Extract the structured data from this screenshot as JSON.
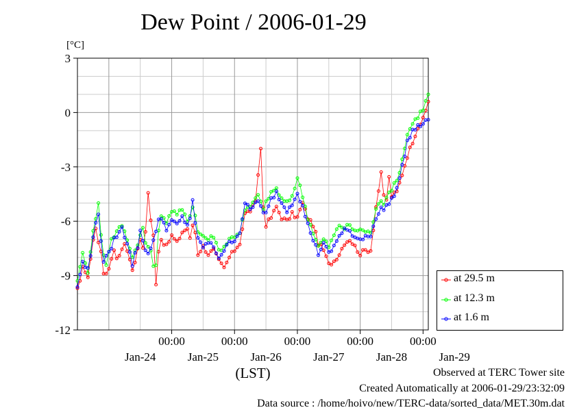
{
  "chart_data": {
    "type": "line",
    "title": "Dew Point / 2006-01-29",
    "yunit": "[°C]",
    "xlabel": "(LST)",
    "ylim": [
      -12,
      3
    ],
    "yticks": [
      "3",
      "0",
      "-3",
      "-6",
      "-9",
      "-12"
    ],
    "xlim_hours_note_free": null,
    "time_ticks": [
      "00:00",
      "00:00",
      "00:00",
      "00:00",
      "00:00"
    ],
    "date_labels": [
      "Jan-24",
      "Jan-25",
      "Jan-26",
      "Jan-27",
      "Jan-28",
      "Jan-29"
    ],
    "grid": true,
    "legend_position": "right-bottom",
    "series": [
      {
        "name": "at 29.5 m",
        "color": "#ff0000",
        "anchors": [
          [
            -6.0,
            -9.8
          ],
          [
            -5.5,
            -9.4
          ],
          [
            -5.0,
            -8.4
          ],
          [
            -4.5,
            -8.8
          ],
          [
            -4.0,
            -9.2
          ],
          [
            -3.5,
            -8.0
          ],
          [
            -3.0,
            -7.0
          ],
          [
            -2.5,
            -6.4
          ],
          [
            -2.0,
            -7.2
          ],
          [
            -1.5,
            -7.6
          ],
          [
            -1.0,
            -8.8
          ],
          [
            -0.5,
            -9.0
          ],
          [
            0.0,
            -8.6
          ],
          [
            0.5,
            -8.0
          ],
          [
            1.0,
            -7.6
          ],
          [
            1.5,
            -8.0
          ],
          [
            2.0,
            -7.8
          ],
          [
            2.5,
            -7.6
          ],
          [
            3.0,
            -7.2
          ],
          [
            3.5,
            -7.6
          ],
          [
            4.0,
            -8.0
          ],
          [
            4.5,
            -8.8
          ],
          [
            5.0,
            -8.2
          ],
          [
            5.5,
            -7.6
          ],
          [
            6.0,
            -7.0
          ],
          [
            6.5,
            -7.4
          ],
          [
            7.0,
            -6.6
          ],
          [
            7.5,
            -4.4
          ],
          [
            8.0,
            -6.0
          ],
          [
            8.5,
            -6.8
          ],
          [
            9.0,
            -9.4
          ],
          [
            9.5,
            -7.6
          ],
          [
            10.0,
            -7.0
          ],
          [
            11.0,
            -7.4
          ],
          [
            12.0,
            -6.8
          ],
          [
            13.0,
            -7.2
          ],
          [
            14.0,
            -6.6
          ],
          [
            15.0,
            -6.4
          ],
          [
            15.5,
            -7.0
          ],
          [
            16.0,
            -6.2
          ],
          [
            16.5,
            -6.6
          ],
          [
            17.0,
            -7.8
          ],
          [
            18.0,
            -7.4
          ],
          [
            19.0,
            -7.8
          ],
          [
            20.0,
            -7.6
          ],
          [
            21.0,
            -8.2
          ],
          [
            22.0,
            -8.6
          ],
          [
            23.0,
            -8.0
          ],
          [
            24.0,
            -7.6
          ],
          [
            25.0,
            -7.2
          ],
          [
            26.0,
            -5.6
          ],
          [
            27.0,
            -5.4
          ],
          [
            28.0,
            -5.0
          ],
          [
            28.5,
            -3.4
          ],
          [
            29.0,
            -2.0
          ],
          [
            29.5,
            -5.2
          ],
          [
            30.0,
            -6.2
          ],
          [
            31.0,
            -5.8
          ],
          [
            32.0,
            -5.2
          ],
          [
            33.0,
            -5.8
          ],
          [
            34.0,
            -6.0
          ],
          [
            35.0,
            -5.6
          ],
          [
            36.0,
            -5.8
          ],
          [
            37.0,
            -5.0
          ],
          [
            38.0,
            -5.8
          ],
          [
            39.0,
            -6.2
          ],
          [
            40.0,
            -7.2
          ],
          [
            41.0,
            -7.6
          ],
          [
            42.0,
            -8.4
          ],
          [
            43.0,
            -8.2
          ],
          [
            44.0,
            -7.8
          ],
          [
            45.0,
            -7.2
          ],
          [
            46.0,
            -7.0
          ],
          [
            47.0,
            -7.4
          ],
          [
            48.0,
            -7.8
          ],
          [
            49.0,
            -7.6
          ],
          [
            50.0,
            -7.6
          ],
          [
            51.0,
            -5.2
          ],
          [
            52.0,
            -3.4
          ],
          [
            52.5,
            -4.6
          ],
          [
            53.0,
            -4.8
          ],
          [
            53.5,
            -3.6
          ],
          [
            54.0,
            -4.6
          ],
          [
            55.0,
            -4.4
          ],
          [
            56.0,
            -3.4
          ],
          [
            57.0,
            -2.4
          ],
          [
            58.0,
            -1.6
          ],
          [
            59.0,
            -0.8
          ],
          [
            60.0,
            -0.4
          ],
          [
            61.0,
            0.6
          ]
        ]
      },
      {
        "name": "at 12.3 m",
        "color": "#00ff00",
        "anchors": [
          [
            -6.0,
            -9.2
          ],
          [
            -5.5,
            -8.6
          ],
          [
            -5.0,
            -7.8
          ],
          [
            -4.5,
            -8.2
          ],
          [
            -4.0,
            -8.8
          ],
          [
            -3.5,
            -7.6
          ],
          [
            -3.0,
            -6.6
          ],
          [
            -2.5,
            -5.8
          ],
          [
            -2.0,
            -5.0
          ],
          [
            -1.5,
            -6.8
          ],
          [
            -1.0,
            -7.8
          ],
          [
            -0.5,
            -8.4
          ],
          [
            0.0,
            -7.6
          ],
          [
            0.5,
            -7.0
          ],
          [
            1.0,
            -6.8
          ],
          [
            1.5,
            -6.6
          ],
          [
            2.0,
            -6.4
          ],
          [
            2.5,
            -6.2
          ],
          [
            3.0,
            -6.6
          ],
          [
            3.5,
            -7.0
          ],
          [
            4.0,
            -7.4
          ],
          [
            4.5,
            -8.0
          ],
          [
            5.0,
            -7.6
          ],
          [
            5.5,
            -7.2
          ],
          [
            6.0,
            -6.8
          ],
          [
            6.5,
            -6.4
          ],
          [
            7.0,
            -7.2
          ],
          [
            7.5,
            -7.4
          ],
          [
            8.0,
            -7.6
          ],
          [
            8.5,
            -8.6
          ],
          [
            9.0,
            -8.4
          ],
          [
            9.5,
            -6.4
          ],
          [
            10.0,
            -5.8
          ],
          [
            11.0,
            -6.0
          ],
          [
            12.0,
            -5.4
          ],
          [
            13.0,
            -5.6
          ],
          [
            14.0,
            -5.4
          ],
          [
            15.0,
            -6.0
          ],
          [
            15.5,
            -5.6
          ],
          [
            16.0,
            -5.2
          ],
          [
            16.5,
            -5.6
          ],
          [
            17.0,
            -6.6
          ],
          [
            18.0,
            -6.8
          ],
          [
            19.0,
            -7.0
          ],
          [
            20.0,
            -6.8
          ],
          [
            21.0,
            -7.6
          ],
          [
            22.0,
            -7.4
          ],
          [
            23.0,
            -7.0
          ],
          [
            24.0,
            -6.8
          ],
          [
            25.0,
            -6.6
          ],
          [
            26.0,
            -5.4
          ],
          [
            27.0,
            -5.2
          ],
          [
            28.0,
            -4.8
          ],
          [
            28.5,
            -4.6
          ],
          [
            29.0,
            -4.8
          ],
          [
            29.5,
            -5.4
          ],
          [
            30.0,
            -5.0
          ],
          [
            31.0,
            -4.4
          ],
          [
            32.0,
            -4.2
          ],
          [
            33.0,
            -4.8
          ],
          [
            34.0,
            -5.0
          ],
          [
            35.0,
            -4.6
          ],
          [
            36.0,
            -3.6
          ],
          [
            37.0,
            -4.6
          ],
          [
            38.0,
            -5.8
          ],
          [
            39.0,
            -6.6
          ],
          [
            40.0,
            -7.4
          ],
          [
            41.0,
            -7.0
          ],
          [
            42.0,
            -7.4
          ],
          [
            43.0,
            -6.8
          ],
          [
            44.0,
            -6.2
          ],
          [
            45.0,
            -6.4
          ],
          [
            46.0,
            -6.2
          ],
          [
            47.0,
            -6.6
          ],
          [
            48.0,
            -6.4
          ],
          [
            49.0,
            -6.6
          ],
          [
            50.0,
            -6.6
          ],
          [
            51.0,
            -5.4
          ],
          [
            52.0,
            -4.8
          ],
          [
            52.5,
            -5.0
          ],
          [
            53.0,
            -4.6
          ],
          [
            53.5,
            -4.4
          ],
          [
            54.0,
            -4.2
          ],
          [
            55.0,
            -3.8
          ],
          [
            56.0,
            -2.6
          ],
          [
            57.0,
            -1.2
          ],
          [
            58.0,
            -0.6
          ],
          [
            59.0,
            -0.2
          ],
          [
            60.0,
            0.2
          ],
          [
            61.0,
            1.0
          ]
        ]
      },
      {
        "name": "at 1.6 m",
        "color": "#0000ff",
        "anchors": [
          [
            -6.0,
            -9.6
          ],
          [
            -5.5,
            -9.0
          ],
          [
            -5.0,
            -8.2
          ],
          [
            -4.5,
            -8.6
          ],
          [
            -4.0,
            -8.6
          ],
          [
            -3.5,
            -7.8
          ],
          [
            -3.0,
            -6.8
          ],
          [
            -2.5,
            -6.2
          ],
          [
            -2.0,
            -5.6
          ],
          [
            -1.5,
            -7.0
          ],
          [
            -1.0,
            -8.2
          ],
          [
            -0.5,
            -8.0
          ],
          [
            0.0,
            -7.8
          ],
          [
            0.5,
            -7.4
          ],
          [
            1.0,
            -7.0
          ],
          [
            1.5,
            -6.8
          ],
          [
            2.0,
            -6.6
          ],
          [
            2.5,
            -6.4
          ],
          [
            3.0,
            -6.8
          ],
          [
            3.5,
            -7.2
          ],
          [
            4.0,
            -7.6
          ],
          [
            4.5,
            -8.4
          ],
          [
            5.0,
            -7.8
          ],
          [
            5.5,
            -7.4
          ],
          [
            6.0,
            -6.6
          ],
          [
            6.5,
            -7.0
          ],
          [
            7.0,
            -7.6
          ],
          [
            7.5,
            -7.8
          ],
          [
            8.0,
            -7.4
          ],
          [
            8.5,
            -7.0
          ],
          [
            9.0,
            -6.6
          ],
          [
            9.5,
            -6.0
          ],
          [
            10.0,
            -5.8
          ],
          [
            11.0,
            -6.4
          ],
          [
            12.0,
            -6.0
          ],
          [
            13.0,
            -6.2
          ],
          [
            14.0,
            -5.8
          ],
          [
            15.0,
            -6.2
          ],
          [
            15.5,
            -5.8
          ],
          [
            16.0,
            -4.8
          ],
          [
            16.5,
            -6.2
          ],
          [
            17.0,
            -7.0
          ],
          [
            18.0,
            -7.4
          ],
          [
            19.0,
            -7.2
          ],
          [
            20.0,
            -7.4
          ],
          [
            21.0,
            -8.0
          ],
          [
            22.0,
            -7.6
          ],
          [
            23.0,
            -7.2
          ],
          [
            24.0,
            -7.0
          ],
          [
            25.0,
            -6.6
          ],
          [
            26.0,
            -5.0
          ],
          [
            27.0,
            -5.4
          ],
          [
            28.0,
            -5.0
          ],
          [
            28.5,
            -4.8
          ],
          [
            29.0,
            -5.2
          ],
          [
            29.5,
            -5.6
          ],
          [
            30.0,
            -5.6
          ],
          [
            31.0,
            -4.8
          ],
          [
            32.0,
            -4.4
          ],
          [
            33.0,
            -5.0
          ],
          [
            34.0,
            -5.4
          ],
          [
            35.0,
            -5.0
          ],
          [
            36.0,
            -4.4
          ],
          [
            37.0,
            -5.2
          ],
          [
            38.0,
            -6.2
          ],
          [
            39.0,
            -7.0
          ],
          [
            40.0,
            -7.8
          ],
          [
            41.0,
            -7.2
          ],
          [
            42.0,
            -7.8
          ],
          [
            43.0,
            -7.4
          ],
          [
            44.0,
            -6.8
          ],
          [
            45.0,
            -6.4
          ],
          [
            46.0,
            -6.6
          ],
          [
            47.0,
            -7.0
          ],
          [
            48.0,
            -7.0
          ],
          [
            49.0,
            -6.8
          ],
          [
            50.0,
            -6.8
          ],
          [
            51.0,
            -5.8
          ],
          [
            52.0,
            -5.2
          ],
          [
            52.5,
            -5.4
          ],
          [
            53.0,
            -5.2
          ],
          [
            53.5,
            -5.0
          ],
          [
            54.0,
            -4.8
          ],
          [
            55.0,
            -4.2
          ],
          [
            56.0,
            -3.0
          ],
          [
            57.0,
            -1.6
          ],
          [
            58.0,
            -1.0
          ],
          [
            59.0,
            -0.8
          ],
          [
            60.0,
            -0.6
          ],
          [
            61.0,
            -0.4
          ]
        ]
      }
    ]
  },
  "footer": {
    "observed": "Observed at TERC Tower site",
    "created": "Created Automatically at 2006-01-29/23:32:09",
    "source": "Data source : /home/hoivo/new/TERC-data/sorted_data/MET.30m.dat"
  }
}
